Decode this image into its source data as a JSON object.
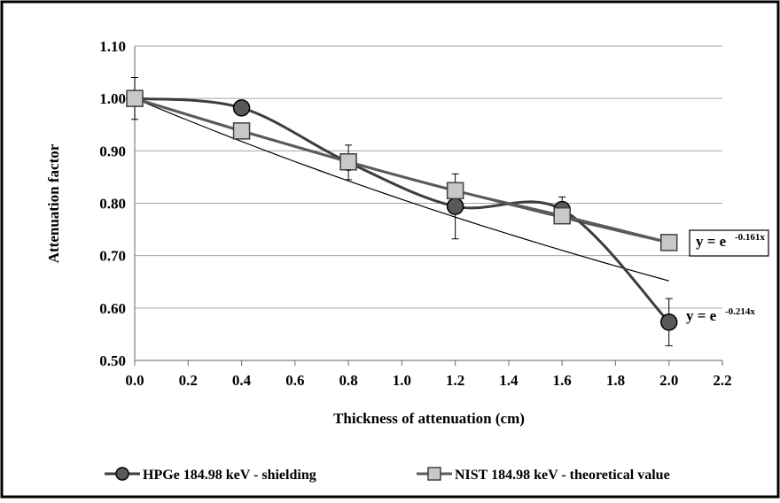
{
  "chart_data": {
    "type": "scatter",
    "xlabel": "Thickness of attenuation (cm)",
    "ylabel": "Attenuation factor",
    "xlim": [
      0.0,
      2.2
    ],
    "ylim": [
      0.5,
      1.1
    ],
    "x_ticks": [
      "0.0",
      "0.2",
      "0.4",
      "0.6",
      "0.8",
      "1.0",
      "1.2",
      "1.4",
      "1.6",
      "1.8",
      "2.0",
      "2.2"
    ],
    "y_ticks": [
      "0.50",
      "0.60",
      "0.70",
      "0.80",
      "0.90",
      "1.00",
      "1.10"
    ],
    "grid": "horizontal",
    "legend_position": "bottom",
    "series": [
      {
        "name": "HPGe 184.98 keV - shielding",
        "marker": "circle",
        "color": "#3d3d3d",
        "smooth": true,
        "x": [
          0.0,
          0.4,
          0.8,
          1.2,
          1.6,
          2.0
        ],
        "y": [
          1.0,
          0.982,
          0.878,
          0.794,
          0.788,
          0.573
        ],
        "error": [
          0.04,
          0.0,
          0.033,
          0.062,
          0.024,
          0.045
        ]
      },
      {
        "name": "NIST 184.98 keV - theoretical value",
        "marker": "square",
        "color": "#5a5a5a",
        "smooth": true,
        "x": [
          0.0,
          0.4,
          0.8,
          1.2,
          1.6,
          2.0
        ],
        "y": [
          1.0,
          0.938,
          0.879,
          0.824,
          0.776,
          0.725
        ],
        "error": [
          0,
          0,
          0,
          0,
          0,
          0
        ]
      }
    ],
    "trendlines": [
      {
        "series": "NIST 184.98 keV - theoretical value",
        "label_base": "y = e",
        "label_exp": "-0.161x",
        "coefficient": -0.161,
        "x_range": [
          0.0,
          2.0
        ],
        "label_boxed": true
      },
      {
        "series": "HPGe 184.98 keV - shielding",
        "label_base": "y = e",
        "label_exp": "-0.214x",
        "coefficient": -0.214,
        "x_range": [
          0.0,
          2.0
        ],
        "label_boxed": false
      }
    ]
  }
}
